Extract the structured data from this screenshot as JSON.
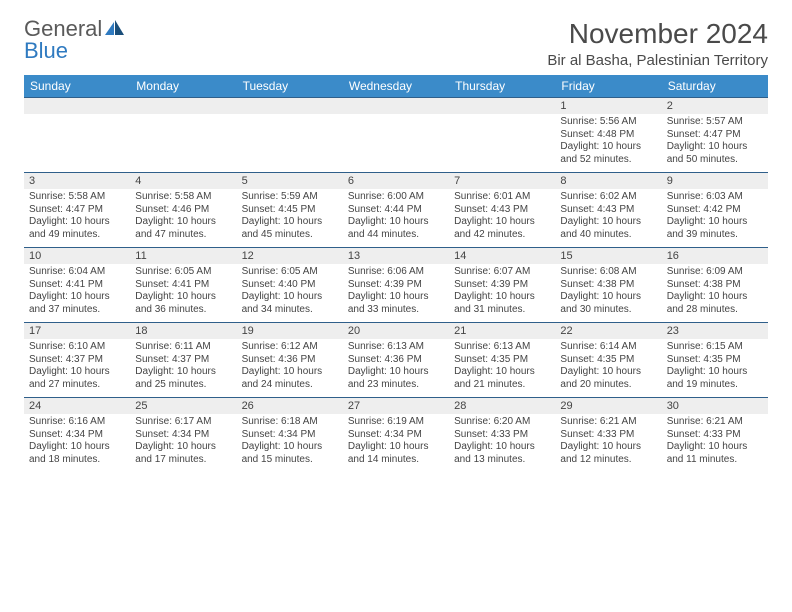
{
  "brand": {
    "word1": "General",
    "word2": "Blue"
  },
  "title": "November 2024",
  "location": "Bir al Basha, Palestinian Territory",
  "colors": {
    "header_bg": "#3b8bc9",
    "header_text": "#ffffff",
    "row_border": "#2f5f8a",
    "daynum_bg": "#eeeeee",
    "text": "#444444",
    "brand_gray": "#5a5a5a",
    "brand_blue": "#2f7ac0"
  },
  "day_names": [
    "Sunday",
    "Monday",
    "Tuesday",
    "Wednesday",
    "Thursday",
    "Friday",
    "Saturday"
  ],
  "weeks": [
    [
      {
        "n": "",
        "sr": "",
        "ss": "",
        "dl": ""
      },
      {
        "n": "",
        "sr": "",
        "ss": "",
        "dl": ""
      },
      {
        "n": "",
        "sr": "",
        "ss": "",
        "dl": ""
      },
      {
        "n": "",
        "sr": "",
        "ss": "",
        "dl": ""
      },
      {
        "n": "",
        "sr": "",
        "ss": "",
        "dl": ""
      },
      {
        "n": "1",
        "sr": "Sunrise: 5:56 AM",
        "ss": "Sunset: 4:48 PM",
        "dl": "Daylight: 10 hours and 52 minutes."
      },
      {
        "n": "2",
        "sr": "Sunrise: 5:57 AM",
        "ss": "Sunset: 4:47 PM",
        "dl": "Daylight: 10 hours and 50 minutes."
      }
    ],
    [
      {
        "n": "3",
        "sr": "Sunrise: 5:58 AM",
        "ss": "Sunset: 4:47 PM",
        "dl": "Daylight: 10 hours and 49 minutes."
      },
      {
        "n": "4",
        "sr": "Sunrise: 5:58 AM",
        "ss": "Sunset: 4:46 PM",
        "dl": "Daylight: 10 hours and 47 minutes."
      },
      {
        "n": "5",
        "sr": "Sunrise: 5:59 AM",
        "ss": "Sunset: 4:45 PM",
        "dl": "Daylight: 10 hours and 45 minutes."
      },
      {
        "n": "6",
        "sr": "Sunrise: 6:00 AM",
        "ss": "Sunset: 4:44 PM",
        "dl": "Daylight: 10 hours and 44 minutes."
      },
      {
        "n": "7",
        "sr": "Sunrise: 6:01 AM",
        "ss": "Sunset: 4:43 PM",
        "dl": "Daylight: 10 hours and 42 minutes."
      },
      {
        "n": "8",
        "sr": "Sunrise: 6:02 AM",
        "ss": "Sunset: 4:43 PM",
        "dl": "Daylight: 10 hours and 40 minutes."
      },
      {
        "n": "9",
        "sr": "Sunrise: 6:03 AM",
        "ss": "Sunset: 4:42 PM",
        "dl": "Daylight: 10 hours and 39 minutes."
      }
    ],
    [
      {
        "n": "10",
        "sr": "Sunrise: 6:04 AM",
        "ss": "Sunset: 4:41 PM",
        "dl": "Daylight: 10 hours and 37 minutes."
      },
      {
        "n": "11",
        "sr": "Sunrise: 6:05 AM",
        "ss": "Sunset: 4:41 PM",
        "dl": "Daylight: 10 hours and 36 minutes."
      },
      {
        "n": "12",
        "sr": "Sunrise: 6:05 AM",
        "ss": "Sunset: 4:40 PM",
        "dl": "Daylight: 10 hours and 34 minutes."
      },
      {
        "n": "13",
        "sr": "Sunrise: 6:06 AM",
        "ss": "Sunset: 4:39 PM",
        "dl": "Daylight: 10 hours and 33 minutes."
      },
      {
        "n": "14",
        "sr": "Sunrise: 6:07 AM",
        "ss": "Sunset: 4:39 PM",
        "dl": "Daylight: 10 hours and 31 minutes."
      },
      {
        "n": "15",
        "sr": "Sunrise: 6:08 AM",
        "ss": "Sunset: 4:38 PM",
        "dl": "Daylight: 10 hours and 30 minutes."
      },
      {
        "n": "16",
        "sr": "Sunrise: 6:09 AM",
        "ss": "Sunset: 4:38 PM",
        "dl": "Daylight: 10 hours and 28 minutes."
      }
    ],
    [
      {
        "n": "17",
        "sr": "Sunrise: 6:10 AM",
        "ss": "Sunset: 4:37 PM",
        "dl": "Daylight: 10 hours and 27 minutes."
      },
      {
        "n": "18",
        "sr": "Sunrise: 6:11 AM",
        "ss": "Sunset: 4:37 PM",
        "dl": "Daylight: 10 hours and 25 minutes."
      },
      {
        "n": "19",
        "sr": "Sunrise: 6:12 AM",
        "ss": "Sunset: 4:36 PM",
        "dl": "Daylight: 10 hours and 24 minutes."
      },
      {
        "n": "20",
        "sr": "Sunrise: 6:13 AM",
        "ss": "Sunset: 4:36 PM",
        "dl": "Daylight: 10 hours and 23 minutes."
      },
      {
        "n": "21",
        "sr": "Sunrise: 6:13 AM",
        "ss": "Sunset: 4:35 PM",
        "dl": "Daylight: 10 hours and 21 minutes."
      },
      {
        "n": "22",
        "sr": "Sunrise: 6:14 AM",
        "ss": "Sunset: 4:35 PM",
        "dl": "Daylight: 10 hours and 20 minutes."
      },
      {
        "n": "23",
        "sr": "Sunrise: 6:15 AM",
        "ss": "Sunset: 4:35 PM",
        "dl": "Daylight: 10 hours and 19 minutes."
      }
    ],
    [
      {
        "n": "24",
        "sr": "Sunrise: 6:16 AM",
        "ss": "Sunset: 4:34 PM",
        "dl": "Daylight: 10 hours and 18 minutes."
      },
      {
        "n": "25",
        "sr": "Sunrise: 6:17 AM",
        "ss": "Sunset: 4:34 PM",
        "dl": "Daylight: 10 hours and 17 minutes."
      },
      {
        "n": "26",
        "sr": "Sunrise: 6:18 AM",
        "ss": "Sunset: 4:34 PM",
        "dl": "Daylight: 10 hours and 15 minutes."
      },
      {
        "n": "27",
        "sr": "Sunrise: 6:19 AM",
        "ss": "Sunset: 4:34 PM",
        "dl": "Daylight: 10 hours and 14 minutes."
      },
      {
        "n": "28",
        "sr": "Sunrise: 6:20 AM",
        "ss": "Sunset: 4:33 PM",
        "dl": "Daylight: 10 hours and 13 minutes."
      },
      {
        "n": "29",
        "sr": "Sunrise: 6:21 AM",
        "ss": "Sunset: 4:33 PM",
        "dl": "Daylight: 10 hours and 12 minutes."
      },
      {
        "n": "30",
        "sr": "Sunrise: 6:21 AM",
        "ss": "Sunset: 4:33 PM",
        "dl": "Daylight: 10 hours and 11 minutes."
      }
    ]
  ]
}
